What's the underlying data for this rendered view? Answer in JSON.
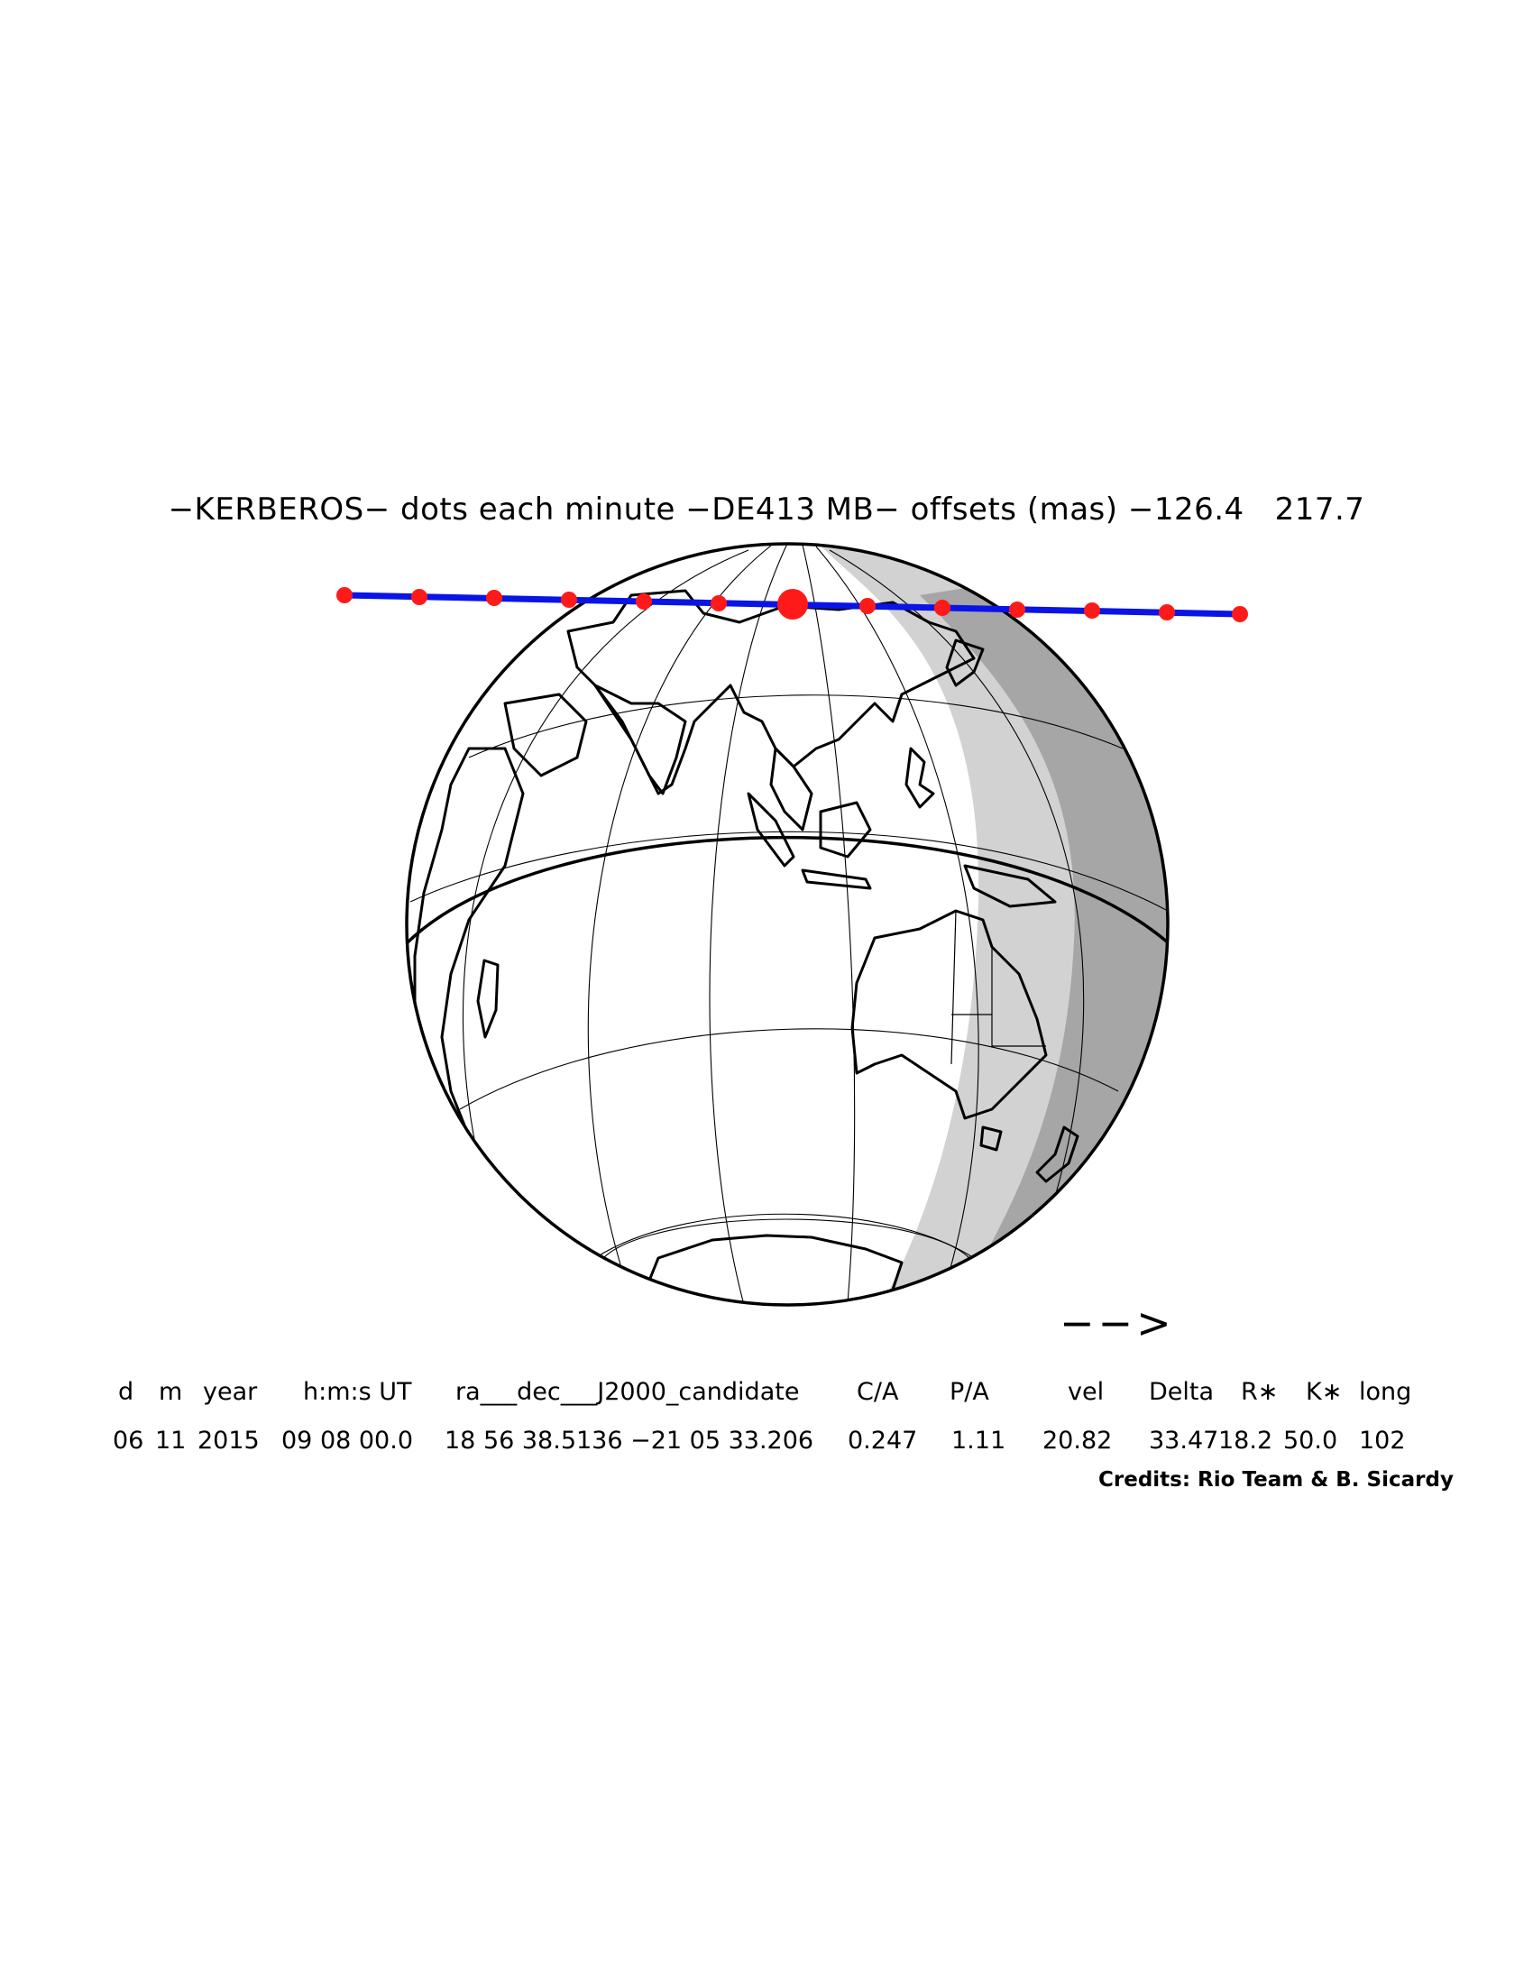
{
  "title": "−KERBEROS− dots each minute −DE413 MB− offsets (mas) −126.4   217.7",
  "direction_arrow": "−−>",
  "table": {
    "headers": [
      "d",
      "m",
      "year",
      "h:m:s UT",
      "ra___dec___J2000_candidate",
      "C/A",
      "P/A",
      "vel",
      "Delta",
      "R∗",
      "K∗",
      "long"
    ],
    "values": [
      "06",
      "11",
      "2015",
      "09 08 00.0",
      "18 56 38.5136 −21 05 33.206",
      "0.247",
      "1.11",
      "20.82",
      "33.47",
      "18.2",
      "50.0",
      "102"
    ]
  },
  "credits": "Credits: Rio Team & B. Sicardy",
  "colors": {
    "path_line": "#0a14e6",
    "minute_dots": "#ff1a1a",
    "penumbra": "#d2d2d2",
    "night": "#a6a6a6",
    "outline": "#000000"
  }
}
